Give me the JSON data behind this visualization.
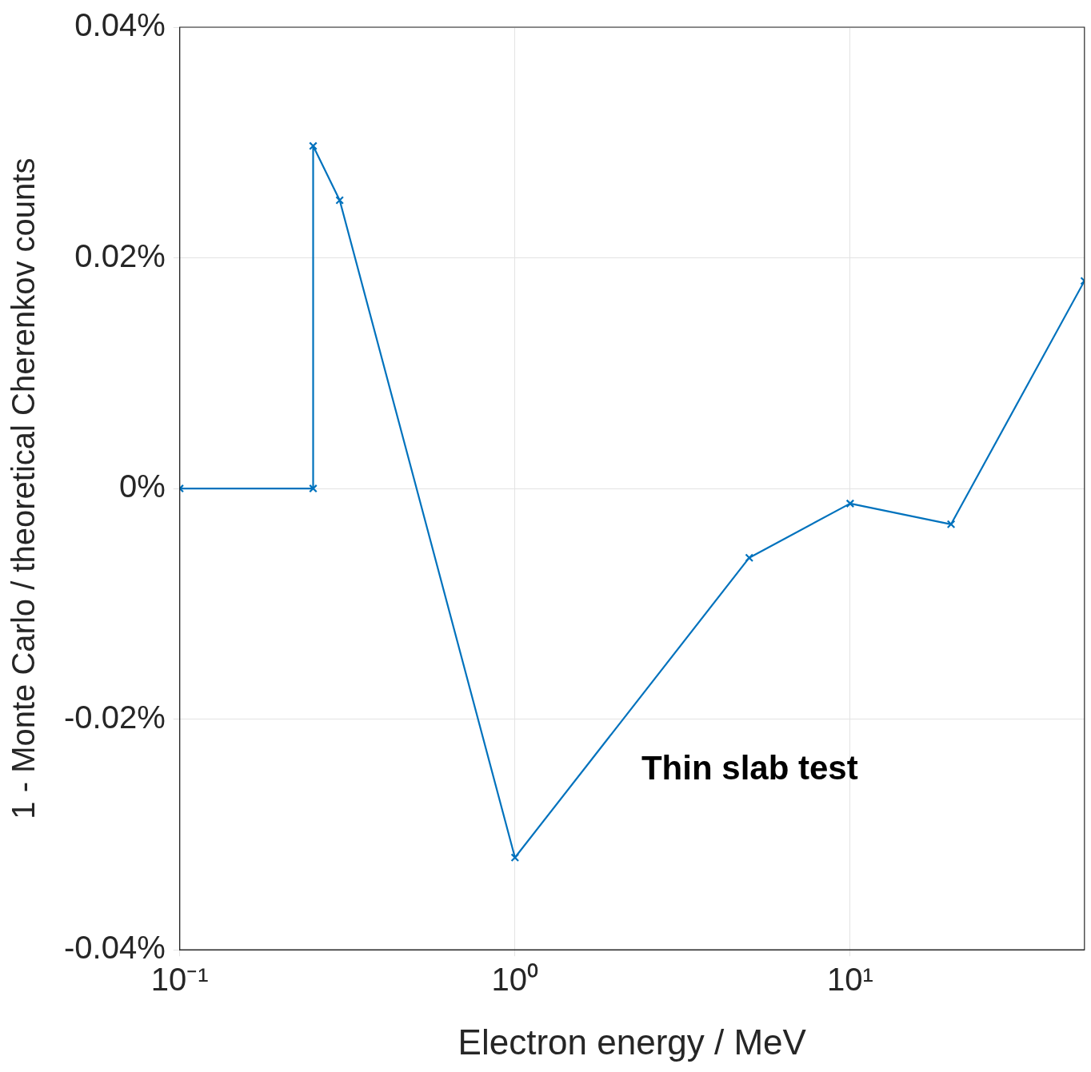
{
  "chart_data": {
    "type": "line",
    "xlabel": "Electron energy / MeV",
    "ylabel": "1 - Monte Carlo / theoretical Cherenkov counts",
    "x": [
      0.1,
      0.25,
      0.25,
      0.3,
      1,
      5,
      10,
      20,
      50
    ],
    "series": [
      {
        "color": "#0072bd",
        "values": [
          0,
          0,
          0.0297,
          0.025,
          -0.032,
          -0.006,
          -0.0013,
          -0.0031,
          0.018
        ]
      }
    ],
    "log": "x",
    "xlim": [
      0.1,
      50
    ],
    "xticks": [
      {
        "value": 0.1,
        "label": "10⁻¹"
      },
      {
        "value": 1,
        "label": "10⁰"
      },
      {
        "value": 10,
        "label": "10¹"
      }
    ],
    "ylim": [
      -0.04,
      0.04
    ],
    "yticks": [
      {
        "value": -0.04,
        "label": "-0.04%"
      },
      {
        "value": -0.02,
        "label": "-0.02%"
      },
      {
        "value": 0,
        "label": "0%"
      },
      {
        "value": 0.02,
        "label": "0.02%"
      },
      {
        "value": 0.04,
        "label": "0.04%"
      }
    ],
    "grid": true,
    "marker": "cross",
    "line_style": "solid",
    "legend": false,
    "annotations": [
      "Thin slab test"
    ]
  }
}
